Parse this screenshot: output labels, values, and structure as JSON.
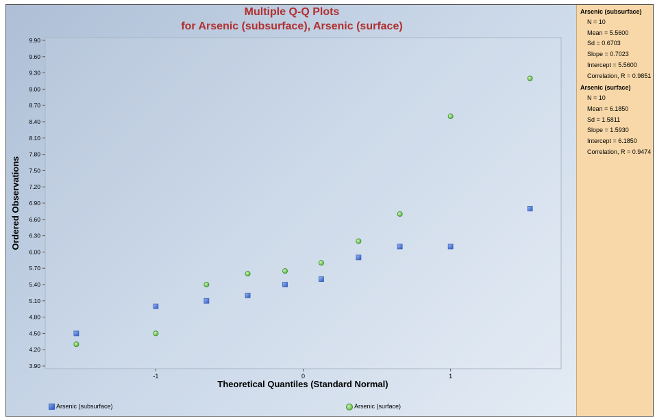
{
  "chart_data": {
    "type": "scatter",
    "title": "Multiple Q-Q Plots",
    "subtitle": "for Arsenic (subsurface), Arsenic (surface)",
    "xlabel": "Theoretical Quantiles (Standard Normal)",
    "ylabel": "Ordered Observations",
    "xlim": [
      -1.75,
      1.75
    ],
    "ylim": [
      3.85,
      9.95
    ],
    "x_ticks": [
      {
        "value": -1,
        "label": "-1"
      },
      {
        "value": 0,
        "label": "0"
      },
      {
        "value": 1,
        "label": "1"
      }
    ],
    "y_ticks": [
      "3.90",
      "4.20",
      "4.50",
      "4.80",
      "5.10",
      "5.40",
      "5.70",
      "6.00",
      "6.30",
      "6.60",
      "6.90",
      "7.20",
      "7.50",
      "7.80",
      "8.10",
      "8.40",
      "8.70",
      "9.00",
      "9.30",
      "9.60",
      "9.90"
    ],
    "grid": false,
    "legend_position": "bottom",
    "series": [
      {
        "name": "Arsenic (subsurface)",
        "marker": "square",
        "color": "#3b6fd8",
        "x": [
          -1.539,
          -1.0,
          -0.656,
          -0.376,
          -0.123,
          0.123,
          0.376,
          0.656,
          1.0,
          1.539
        ],
        "y": [
          4.5,
          5.0,
          5.1,
          5.2,
          5.4,
          5.5,
          5.9,
          6.1,
          6.1,
          6.8
        ]
      },
      {
        "name": "Arsenic (surface)",
        "marker": "circle",
        "color": "#5cbf45",
        "x": [
          -1.539,
          -1.0,
          -0.656,
          -0.376,
          -0.123,
          0.123,
          0.376,
          0.656,
          1.0,
          1.539
        ],
        "y": [
          4.3,
          4.5,
          5.4,
          5.6,
          5.65,
          5.8,
          6.2,
          6.7,
          8.5,
          9.2
        ]
      }
    ]
  },
  "stats_panel": [
    {
      "header": "Arsenic (subsurface)",
      "lines": [
        "N = 10",
        "Mean = 5.5600",
        "Sd = 0.6703",
        "Slope = 0.7023",
        "Intercept = 5.5600",
        "Correlation, R = 0.9851"
      ]
    },
    {
      "header": "Arsenic (surface)",
      "lines": [
        "N = 10",
        "Mean = 6.1850",
        "Sd = 1.5811",
        "Slope = 1.5930",
        "Intercept = 6.1850",
        "Correlation, R = 0.9474"
      ]
    }
  ],
  "colors": {
    "title": "#b03030",
    "panel_bg": "#f8d8a8",
    "plot_bg": "#c9d7e8"
  }
}
